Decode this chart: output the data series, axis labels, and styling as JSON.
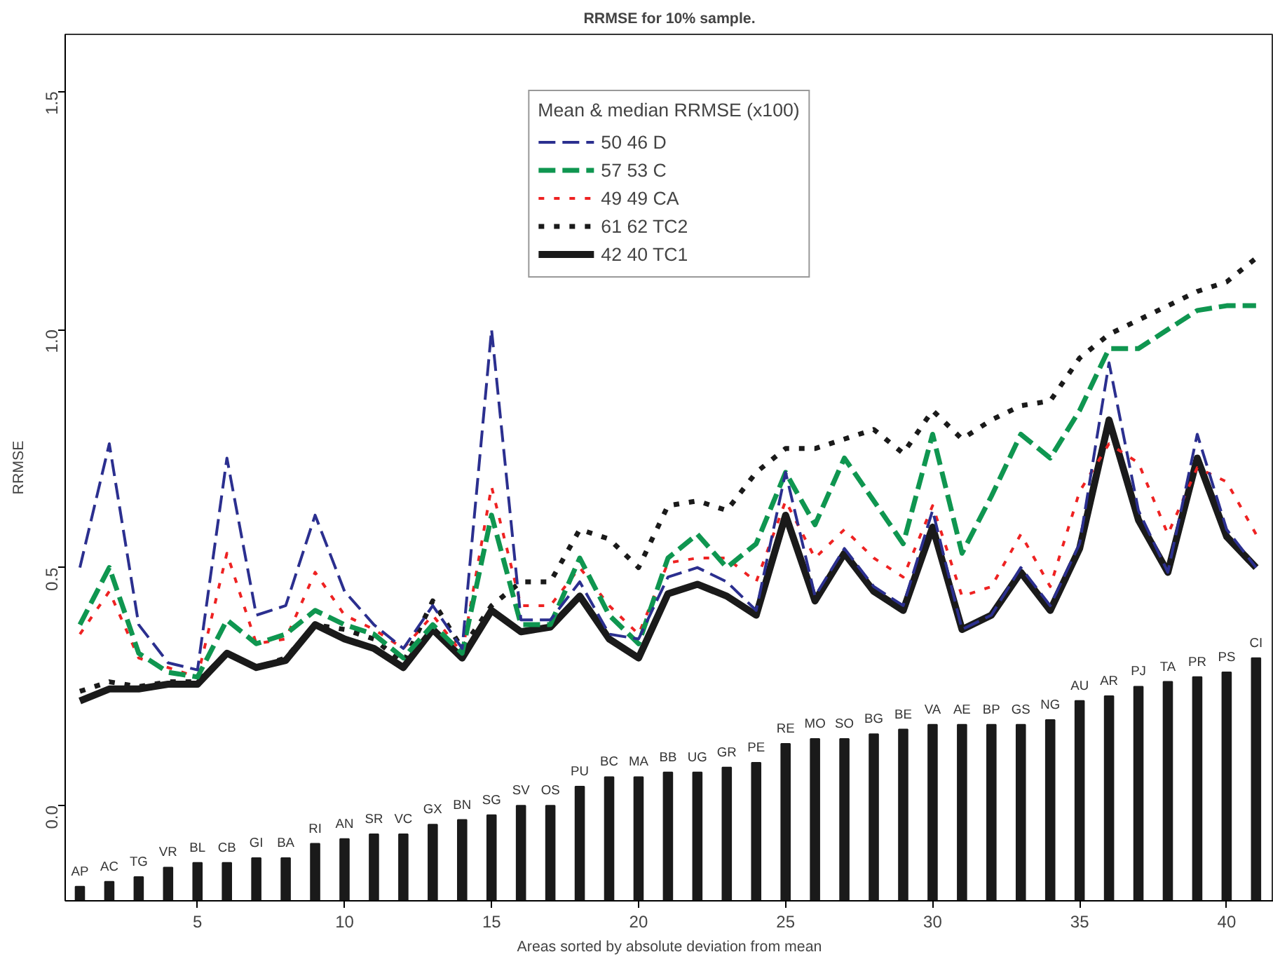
{
  "chart_data": {
    "type": "line",
    "title": "RRMSE for 10% sample.",
    "xlabel": "Areas sorted by absolute deviation from mean",
    "ylabel": "RRMSE",
    "legend_title": "Mean & median RRMSE (x100)",
    "x": [
      1,
      2,
      3,
      4,
      5,
      6,
      7,
      8,
      9,
      10,
      11,
      12,
      13,
      14,
      15,
      16,
      17,
      18,
      19,
      20,
      21,
      22,
      23,
      24,
      25,
      26,
      27,
      28,
      29,
      30,
      31,
      32,
      33,
      34,
      35,
      36,
      37,
      38,
      39,
      40,
      41
    ],
    "xlim": [
      0.5,
      41.6
    ],
    "xticks": [
      5,
      10,
      15,
      20,
      25,
      30,
      35,
      40
    ],
    "ylim": [
      -0.2,
      1.62
    ],
    "yticks": [
      {
        "value": 0,
        "label": "0.0"
      },
      {
        "value": 0.5,
        "label": "0.5"
      },
      {
        "value": 1,
        "label": "1.0"
      },
      {
        "value": 1.5,
        "label": "1.5"
      }
    ],
    "grid": false,
    "legend": "top",
    "series": [
      {
        "name": "50 46 D",
        "color": "#2b2f8f",
        "line_style": "dashed",
        "values": [
          0.5,
          0.76,
          0.38,
          0.3,
          0.285,
          0.73,
          0.4,
          0.42,
          0.61,
          0.45,
          0.38,
          0.33,
          0.42,
          0.33,
          1.0,
          0.39,
          0.39,
          0.47,
          0.36,
          0.35,
          0.48,
          0.5,
          0.47,
          0.41,
          0.7,
          0.44,
          0.54,
          0.46,
          0.42,
          0.62,
          0.37,
          0.4,
          0.5,
          0.42,
          0.55,
          0.93,
          0.62,
          0.49,
          0.78,
          0.58,
          0.5
        ]
      },
      {
        "name": "57 53 C",
        "color": "#0f9650",
        "line_style": "dashed",
        "values": [
          0.38,
          0.5,
          0.32,
          0.28,
          0.27,
          0.39,
          0.34,
          0.36,
          0.41,
          0.38,
          0.36,
          0.31,
          0.38,
          0.32,
          0.61,
          0.38,
          0.38,
          0.52,
          0.4,
          0.34,
          0.52,
          0.57,
          0.5,
          0.55,
          0.7,
          0.59,
          0.73,
          0.64,
          0.55,
          0.78,
          0.53,
          0.65,
          0.78,
          0.73,
          0.83,
          0.96,
          0.96,
          1.0,
          1.04,
          1.05,
          1.05
        ]
      },
      {
        "name": "49 49 CA",
        "color": "#ee2222",
        "line_style": "dotted",
        "values": [
          0.36,
          0.45,
          0.31,
          0.29,
          0.27,
          0.53,
          0.34,
          0.35,
          0.49,
          0.4,
          0.37,
          0.33,
          0.4,
          0.32,
          0.67,
          0.42,
          0.42,
          0.5,
          0.42,
          0.36,
          0.51,
          0.52,
          0.52,
          0.47,
          0.64,
          0.52,
          0.58,
          0.52,
          0.48,
          0.63,
          0.44,
          0.46,
          0.57,
          0.46,
          0.66,
          0.76,
          0.72,
          0.57,
          0.71,
          0.68,
          0.57
        ]
      },
      {
        "name": "61 62 TC2",
        "color": "#1a1a1a",
        "line_style": "dotted",
        "values": [
          0.24,
          0.26,
          0.25,
          0.26,
          0.26,
          0.32,
          0.29,
          0.31,
          0.38,
          0.37,
          0.35,
          0.3,
          0.43,
          0.33,
          0.42,
          0.47,
          0.47,
          0.58,
          0.56,
          0.5,
          0.63,
          0.64,
          0.62,
          0.7,
          0.75,
          0.75,
          0.77,
          0.79,
          0.74,
          0.83,
          0.77,
          0.81,
          0.84,
          0.85,
          0.94,
          0.99,
          1.02,
          1.05,
          1.08,
          1.1,
          1.15
        ]
      },
      {
        "name": "42 40 TC1",
        "color": "#1a1a1a",
        "line_style": "solid",
        "values": [
          0.22,
          0.245,
          0.245,
          0.255,
          0.255,
          0.32,
          0.29,
          0.305,
          0.38,
          0.35,
          0.33,
          0.29,
          0.37,
          0.31,
          0.41,
          0.365,
          0.375,
          0.44,
          0.35,
          0.31,
          0.445,
          0.465,
          0.44,
          0.4,
          0.61,
          0.43,
          0.53,
          0.45,
          0.41,
          0.585,
          0.37,
          0.4,
          0.49,
          0.41,
          0.54,
          0.81,
          0.6,
          0.49,
          0.73,
          0.565,
          0.5
        ]
      },
      {
        "type": "bar",
        "color": "#1a1a1a",
        "base": [
          -0.2,
          -0.2,
          -0.2,
          -0.2,
          -0.2,
          -0.2,
          -0.2,
          -0.2,
          -0.2,
          -0.2,
          -0.2,
          -0.2,
          -0.2,
          -0.2,
          -0.2,
          -0.2,
          -0.2,
          -0.2,
          -0.2,
          -0.2,
          -0.2,
          -0.2,
          -0.2,
          -0.2,
          -0.2,
          -0.2,
          -0.2,
          -0.2,
          -0.2,
          -0.2,
          -0.2,
          -0.2,
          -0.2,
          -0.2,
          -0.2,
          -0.2,
          -0.2,
          -0.2,
          -0.2,
          -0.2,
          -0.2
        ],
        "values": [
          0.03,
          0.04,
          0.05,
          0.07,
          0.08,
          0.08,
          0.09,
          0.09,
          0.12,
          0.13,
          0.14,
          0.14,
          0.16,
          0.17,
          0.18,
          0.2,
          0.2,
          0.24,
          0.26,
          0.26,
          0.27,
          0.27,
          0.28,
          0.29,
          0.33,
          0.34,
          0.34,
          0.35,
          0.36,
          0.37,
          0.37,
          0.37,
          0.37,
          0.38,
          0.42,
          0.43,
          0.45,
          0.46,
          0.47,
          0.48,
          0.51
        ]
      }
    ],
    "annotations": [
      {
        "text": "AP",
        "x": 1,
        "y": -0.17
      },
      {
        "text": "AC",
        "x": 2,
        "y": -0.16
      },
      {
        "text": "TG",
        "x": 3,
        "y": -0.15
      },
      {
        "text": "VR",
        "x": 4,
        "y": -0.13
      },
      {
        "text": "BL",
        "x": 5,
        "y": -0.12
      },
      {
        "text": "CB",
        "x": 6,
        "y": -0.12
      },
      {
        "text": "GI",
        "x": 7,
        "y": -0.11
      },
      {
        "text": "BA",
        "x": 8,
        "y": -0.11
      },
      {
        "text": "RI",
        "x": 9,
        "y": -0.08
      },
      {
        "text": "AN",
        "x": 10,
        "y": -0.07
      },
      {
        "text": "SR",
        "x": 11,
        "y": -0.06
      },
      {
        "text": "VC",
        "x": 12,
        "y": -0.06
      },
      {
        "text": "GX",
        "x": 13,
        "y": -0.04
      },
      {
        "text": "BN",
        "x": 14,
        "y": -0.03
      },
      {
        "text": "SG",
        "x": 15,
        "y": -0.02
      },
      {
        "text": "SV",
        "x": 16,
        "y": 0.0
      },
      {
        "text": "OS",
        "x": 17,
        "y": 0.0
      },
      {
        "text": "PU",
        "x": 18,
        "y": 0.04
      },
      {
        "text": "BC",
        "x": 19,
        "y": 0.06
      },
      {
        "text": "MA",
        "x": 20,
        "y": 0.06
      },
      {
        "text": "BB",
        "x": 21,
        "y": 0.07
      },
      {
        "text": "UG",
        "x": 22,
        "y": 0.07
      },
      {
        "text": "GR",
        "x": 23,
        "y": 0.08
      },
      {
        "text": "PE",
        "x": 24,
        "y": 0.09
      },
      {
        "text": "RE",
        "x": 25,
        "y": 0.13
      },
      {
        "text": "MO",
        "x": 26,
        "y": 0.14
      },
      {
        "text": "SO",
        "x": 27,
        "y": 0.14
      },
      {
        "text": "BG",
        "x": 28,
        "y": 0.15
      },
      {
        "text": "BE",
        "x": 29,
        "y": 0.16
      },
      {
        "text": "VA",
        "x": 30,
        "y": 0.17
      },
      {
        "text": "AE",
        "x": 31,
        "y": 0.17
      },
      {
        "text": "BP",
        "x": 32,
        "y": 0.17
      },
      {
        "text": "GS",
        "x": 33,
        "y": 0.17
      },
      {
        "text": "NG",
        "x": 34,
        "y": 0.18
      },
      {
        "text": "AU",
        "x": 35,
        "y": 0.22
      },
      {
        "text": "AR",
        "x": 36,
        "y": 0.23
      },
      {
        "text": "PJ",
        "x": 37,
        "y": 0.25
      },
      {
        "text": "TA",
        "x": 38,
        "y": 0.26
      },
      {
        "text": "PR",
        "x": 39,
        "y": 0.27
      },
      {
        "text": "PS",
        "x": 40,
        "y": 0.28
      },
      {
        "text": "CI",
        "x": 41,
        "y": 0.31
      }
    ]
  }
}
